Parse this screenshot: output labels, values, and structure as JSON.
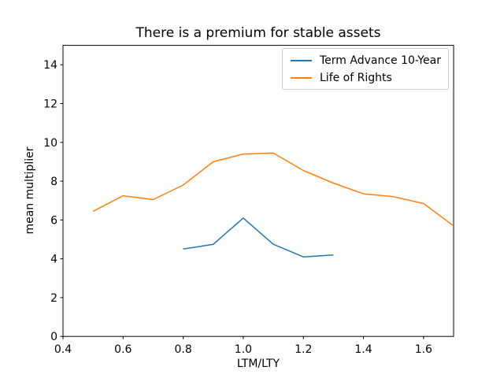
{
  "chart_data": {
    "type": "line",
    "title": "There is a premium for stable assets",
    "xlabel": "LTM/LTY",
    "ylabel": "mean multiplier",
    "xlim": [
      0.4,
      1.7
    ],
    "ylim": [
      0,
      15
    ],
    "xticks": [
      0.4,
      0.6,
      0.8,
      1.0,
      1.2,
      1.4,
      1.6
    ],
    "xtick_labels": [
      "0.4",
      "0.6",
      "0.8",
      "1.0",
      "1.2",
      "1.4",
      "1.6"
    ],
    "yticks": [
      0,
      2,
      4,
      6,
      8,
      10,
      12,
      14
    ],
    "ytick_labels": [
      "0",
      "2",
      "4",
      "6",
      "8",
      "10",
      "12",
      "14"
    ],
    "grid": false,
    "legend_position": "upper right",
    "axis_color": "#000000",
    "series": [
      {
        "name": "Term Advance 10-Year",
        "color": "#1f77b4",
        "x": [
          0.8,
          0.9,
          1.0,
          1.1,
          1.2,
          1.3
        ],
        "y": [
          4.5,
          4.75,
          6.1,
          4.75,
          4.1,
          4.2
        ]
      },
      {
        "name": "Life of Rights",
        "color": "#ff7f0e",
        "x": [
          0.5,
          0.6,
          0.7,
          0.8,
          0.9,
          1.0,
          1.1,
          1.2,
          1.3,
          1.4,
          1.5,
          1.6,
          1.7
        ],
        "y": [
          6.45,
          7.25,
          7.05,
          7.8,
          9.0,
          9.4,
          9.45,
          8.55,
          7.9,
          7.35,
          7.2,
          6.85,
          5.7
        ]
      }
    ]
  }
}
